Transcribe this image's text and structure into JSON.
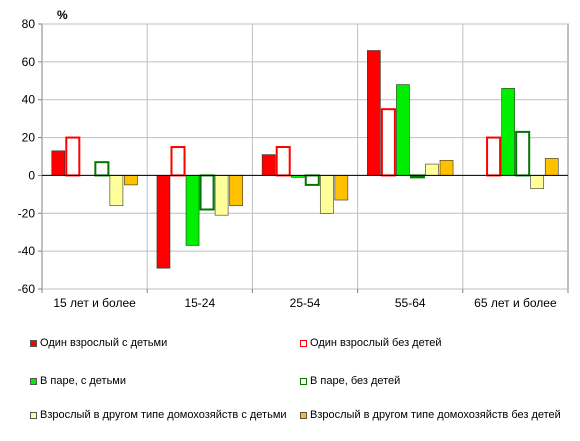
{
  "chart_data": {
    "type": "bar",
    "unit_label": "%",
    "categories": [
      "15 лет и более",
      "15-24",
      "25-54",
      "55-64",
      "65 лет и более"
    ],
    "ylim": [
      -60,
      80
    ],
    "yticks": [
      80,
      60,
      40,
      20,
      0,
      -20,
      -40,
      -60
    ],
    "grid": true,
    "legend_position": "bottom",
    "series": [
      {
        "name": "Один взрослый с детьми",
        "color": "#ff0000",
        "style": "filled",
        "values": [
          13,
          -49,
          11,
          66,
          null
        ]
      },
      {
        "name": "Один взрослый без детей",
        "color": "#ff0000",
        "style": "outline",
        "values": [
          20,
          15,
          15,
          35,
          20
        ]
      },
      {
        "name": "В паре,  с детьми",
        "color": "#00ee00",
        "style": "filled",
        "values": [
          null,
          -37,
          -1,
          48,
          46
        ]
      },
      {
        "name": "В паре,  без детей",
        "color": "#007700",
        "style": "outline",
        "values": [
          7,
          -18,
          -5,
          -1,
          23
        ]
      },
      {
        "name": "Взрослый  в другом типе домохозяйств с детьми",
        "color": "#ffff99",
        "style": "filled",
        "values": [
          -16,
          -21,
          -20,
          6,
          -7
        ]
      },
      {
        "name": "Взрослый  в другом типе домохозяйств без детей",
        "color": "#ffc000",
        "style": "filled",
        "values": [
          -5,
          -16,
          -13,
          8,
          9
        ]
      }
    ]
  }
}
